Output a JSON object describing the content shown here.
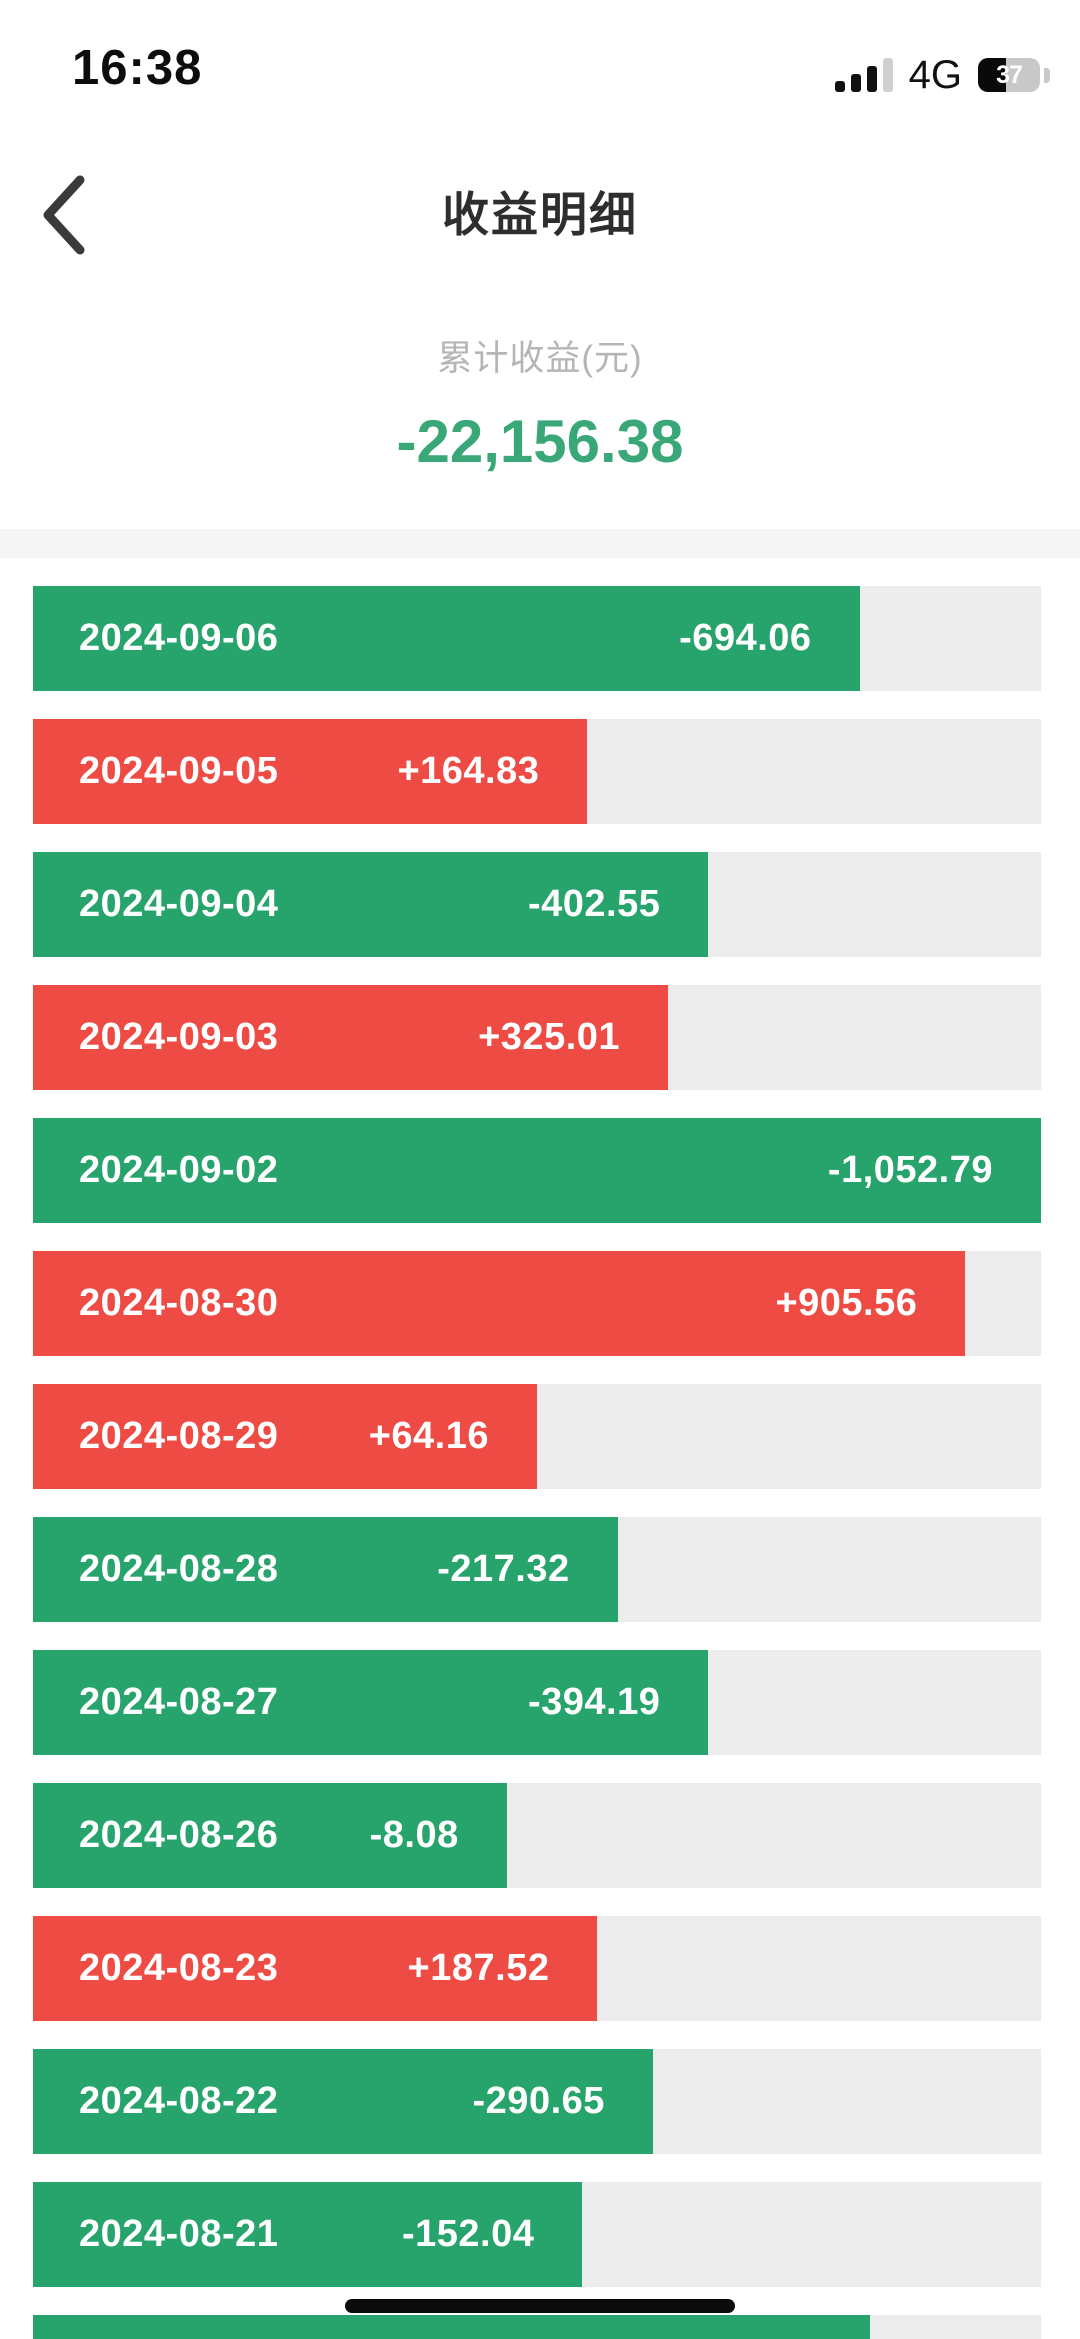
{
  "status_bar": {
    "time": "16:38",
    "network": "4G",
    "battery_percent": "37"
  },
  "header": {
    "title": "收益明细"
  },
  "summary": {
    "label": "累计收益(元)",
    "value": "-22,156.38"
  },
  "colors": {
    "gain": "#ee4b45",
    "loss": "#27a36c",
    "total": "#3aa778",
    "track": "#ececec",
    "strip": "#f5f5f6"
  },
  "chart_data": {
    "type": "bar",
    "orientation": "horizontal",
    "title": "收益明细",
    "note": "daily profit list; positive values red bars, negative values green bars; bar length pct measured against full track width",
    "rows": [
      {
        "date": "2024-09-06",
        "value_label": "-694.06",
        "value": -694.06,
        "bar_pct": 82,
        "color": "green",
        "partial": false
      },
      {
        "date": "2024-09-05",
        "value_label": "+164.83",
        "value": 164.83,
        "bar_pct": 55,
        "color": "red",
        "partial": false
      },
      {
        "date": "2024-09-04",
        "value_label": "-402.55",
        "value": -402.55,
        "bar_pct": 67,
        "color": "green",
        "partial": false
      },
      {
        "date": "2024-09-03",
        "value_label": "+325.01",
        "value": 325.01,
        "bar_pct": 63,
        "color": "red",
        "partial": false
      },
      {
        "date": "2024-09-02",
        "value_label": "-1,052.79",
        "value": -1052.79,
        "bar_pct": 100,
        "color": "green",
        "partial": false
      },
      {
        "date": "2024-08-30",
        "value_label": "+905.56",
        "value": 905.56,
        "bar_pct": 92.5,
        "color": "red",
        "partial": false
      },
      {
        "date": "2024-08-29",
        "value_label": "+64.16",
        "value": 64.16,
        "bar_pct": 50,
        "color": "red",
        "partial": false
      },
      {
        "date": "2024-08-28",
        "value_label": "-217.32",
        "value": -217.32,
        "bar_pct": 58,
        "color": "green",
        "partial": false
      },
      {
        "date": "2024-08-27",
        "value_label": "-394.19",
        "value": -394.19,
        "bar_pct": 67,
        "color": "green",
        "partial": false
      },
      {
        "date": "2024-08-26",
        "value_label": "-8.08",
        "value": -8.08,
        "bar_pct": 47,
        "color": "green",
        "partial": false
      },
      {
        "date": "2024-08-23",
        "value_label": "+187.52",
        "value": 187.52,
        "bar_pct": 56,
        "color": "red",
        "partial": false
      },
      {
        "date": "2024-08-22",
        "value_label": "-290.65",
        "value": -290.65,
        "bar_pct": 61.5,
        "color": "green",
        "partial": false
      },
      {
        "date": "2024-08-21",
        "value_label": "-152.04",
        "value": -152.04,
        "bar_pct": 54.5,
        "color": "green",
        "partial": false
      },
      {
        "date": "",
        "value_label": "",
        "value": null,
        "bar_pct": 83,
        "color": "green",
        "partial": true
      }
    ]
  }
}
